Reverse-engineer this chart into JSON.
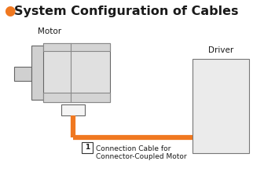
{
  "title": "System Configuration of Cables",
  "title_bullet_color": "#F07820",
  "title_color": "#1a1a1a",
  "title_fontsize": 11.5,
  "bg_color": "#ffffff",
  "motor_label": "Motor",
  "driver_label": "Driver",
  "cable_label_num": "1",
  "cable_label_text1": "Connection Cable for",
  "cable_label_text2": "Connector-Coupled Motor",
  "cable_color": "#F07820",
  "cable_linewidth": 4.5,
  "figw": 3.36,
  "figh": 2.33,
  "dpi": 100
}
